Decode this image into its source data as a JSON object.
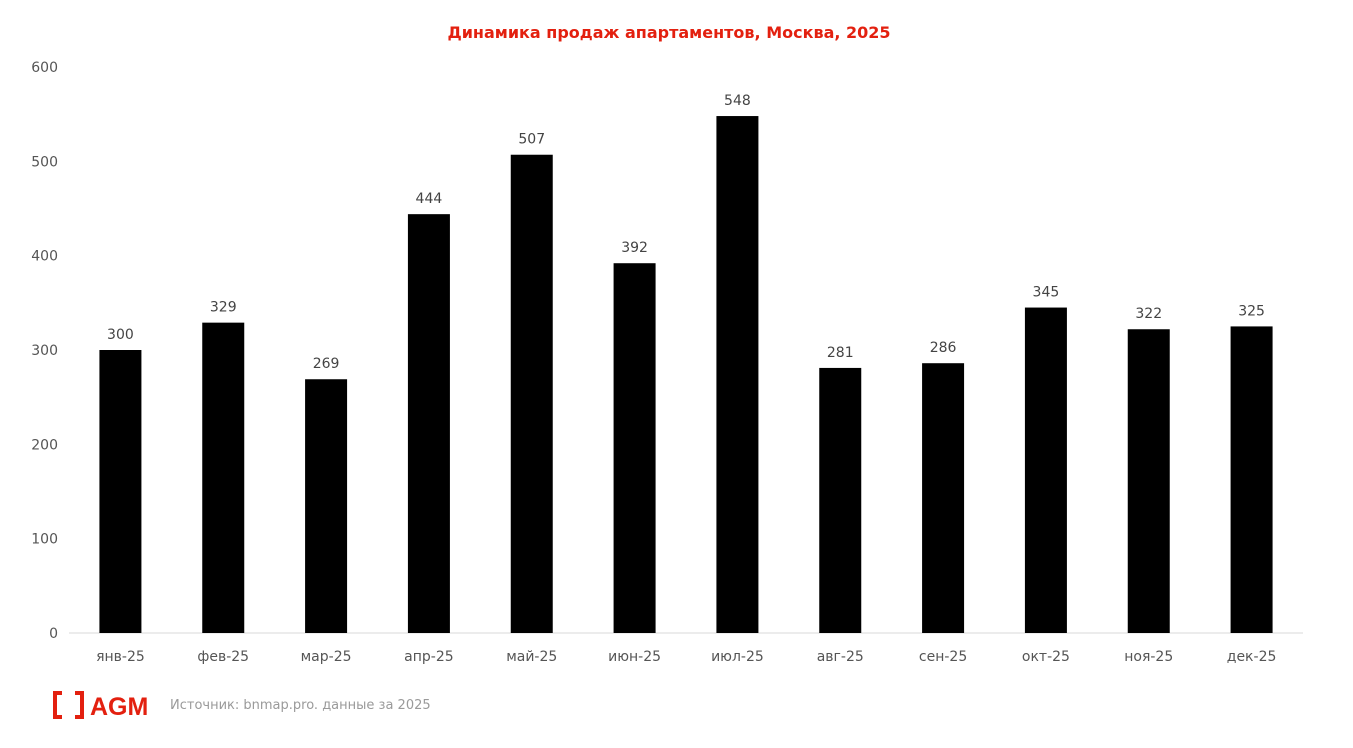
{
  "chart_data": {
    "type": "bar",
    "title": "Динамика продаж апартаментов, Москва, 2025",
    "categories": [
      "янв-25",
      "фев-25",
      "мар-25",
      "апр-25",
      "май-25",
      "июн-25",
      "июл-25",
      "авг-25",
      "сен-25",
      "окт-25",
      "ноя-25",
      "дек-25"
    ],
    "values": [
      300,
      329,
      269,
      444,
      507,
      392,
      548,
      281,
      286,
      345,
      322,
      325
    ],
    "ylim": [
      0,
      600
    ],
    "yticks": [
      0,
      100,
      200,
      300,
      400,
      500,
      600
    ],
    "xlabel": "",
    "ylabel": "",
    "grid": false,
    "data_labels": true,
    "bar_color": "#000000",
    "title_color": "#e3200f"
  },
  "footer": {
    "logo_text": "AGM",
    "source": "Источник: bnmap.pro. данные за 2025"
  }
}
